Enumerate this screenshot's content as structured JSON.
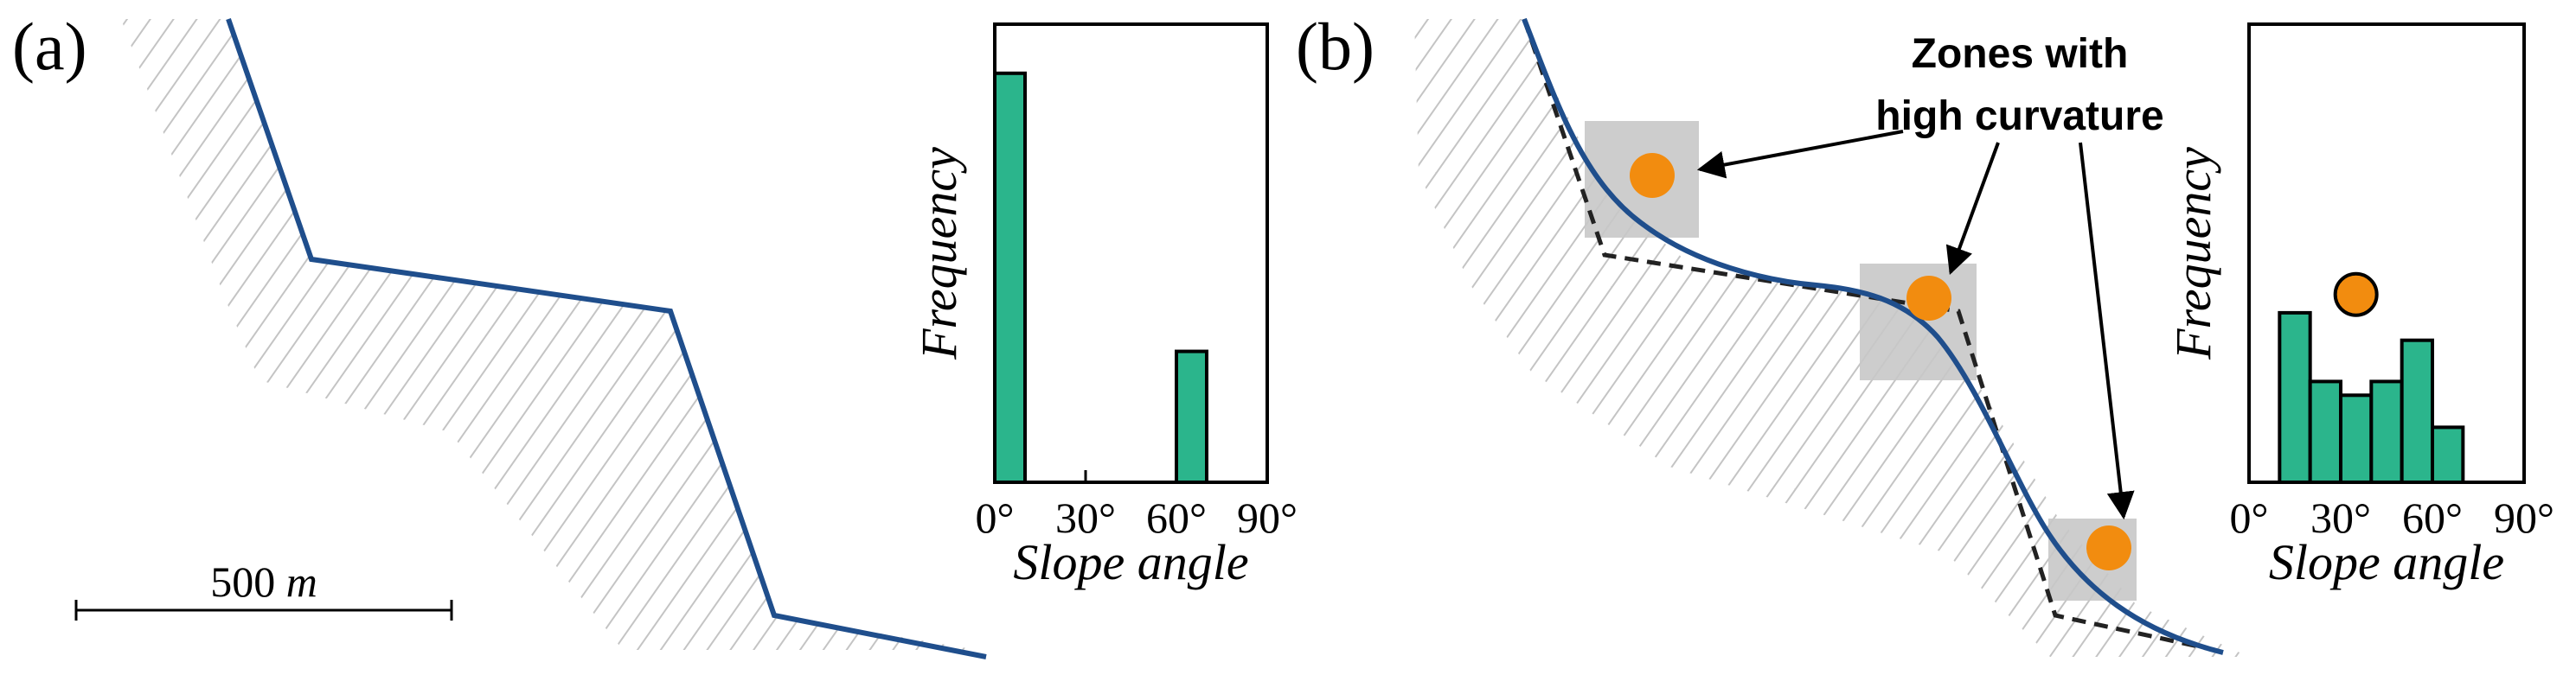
{
  "panel_a": {
    "label": "(a)",
    "scale_bar": {
      "value": "500",
      "unit": "m"
    }
  },
  "panel_b": {
    "label": "(b)",
    "callout": {
      "line1": "Zones with",
      "line2": "high curvature"
    }
  },
  "colors": {
    "profile": "#1f4e8c",
    "bars": "#2bb58c",
    "highlight": "#f28c0f",
    "zone": "#c8c8c8",
    "hatch": "#c4c4c4"
  },
  "chart_data": [
    {
      "type": "bar",
      "panel": "a",
      "xlabel": "Slope angle",
      "ylabel": "Frequency",
      "xticks": [
        "0°",
        "30°",
        "60°",
        "90°"
      ],
      "xlim": [
        0,
        90
      ],
      "bin_width": 10,
      "bins": [
        5,
        65
      ],
      "values": [
        1.0,
        0.32
      ],
      "ylim": [
        0,
        1.12
      ]
    },
    {
      "type": "bar",
      "panel": "b",
      "xlabel": "Slope angle",
      "ylabel": "Frequency",
      "xticks": [
        "0°",
        "30°",
        "60°",
        "90°"
      ],
      "xlim": [
        0,
        90
      ],
      "bin_width": 10,
      "bins": [
        15,
        25,
        35,
        45,
        55,
        65
      ],
      "values": [
        0.37,
        0.22,
        0.19,
        0.22,
        0.31,
        0.12
      ],
      "ylim": [
        0,
        1.0
      ],
      "marker_at": 35
    }
  ]
}
